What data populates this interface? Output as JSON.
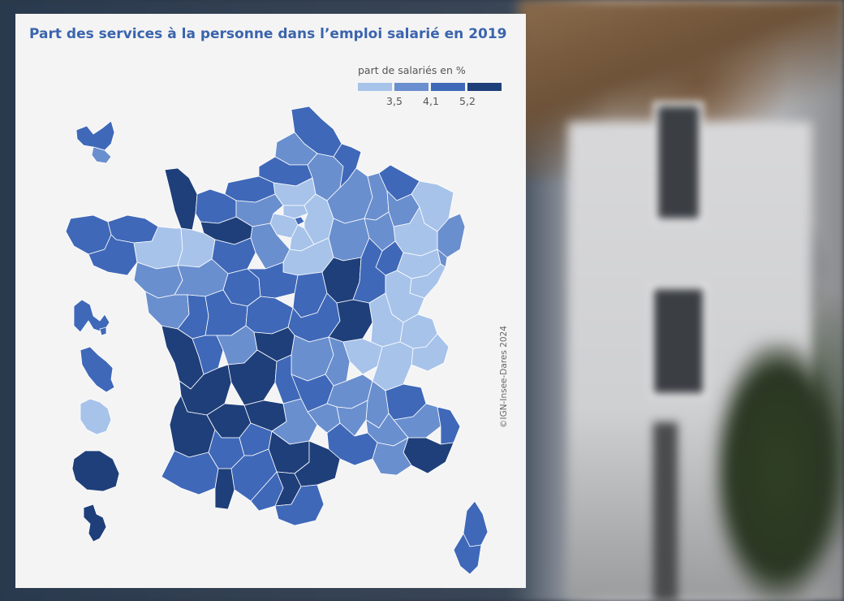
{
  "title": "Part des services à la personne dans l’emploi salarié en 2019",
  "legend": {
    "title": "part de salariés en %",
    "colors": [
      "#a7c3ea",
      "#6a8fcf",
      "#3f68b8",
      "#1f3f7a"
    ],
    "breaks": [
      "3,5",
      "4,1",
      "5,2"
    ]
  },
  "credit": "©IGN-Insee-Dares 2024",
  "colors": {
    "title": "#3a64ad",
    "card_background": "#f4f4f4",
    "region_border": "#ffffff"
  }
}
